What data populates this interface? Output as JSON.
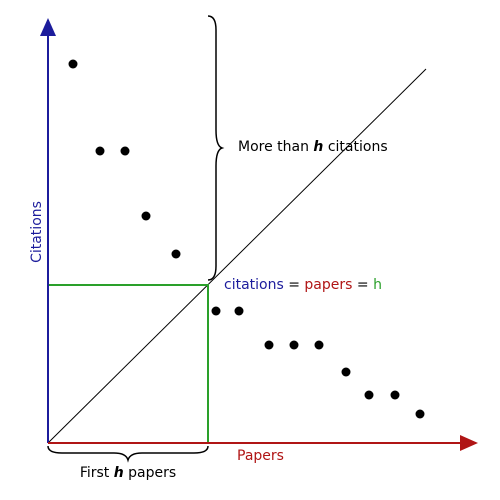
{
  "axes": {
    "y_label": "Citations",
    "x_label": "Papers"
  },
  "annotations": {
    "above": {
      "before": "More than ",
      "emphasis": "h",
      "after": " citations"
    },
    "first": {
      "before": "First ",
      "emphasis": "h",
      "after": " papers"
    },
    "equation": {
      "citations": "citations",
      "eq1": " = ",
      "papers": "papers",
      "eq2": " = ",
      "h": "h"
    }
  }
}
